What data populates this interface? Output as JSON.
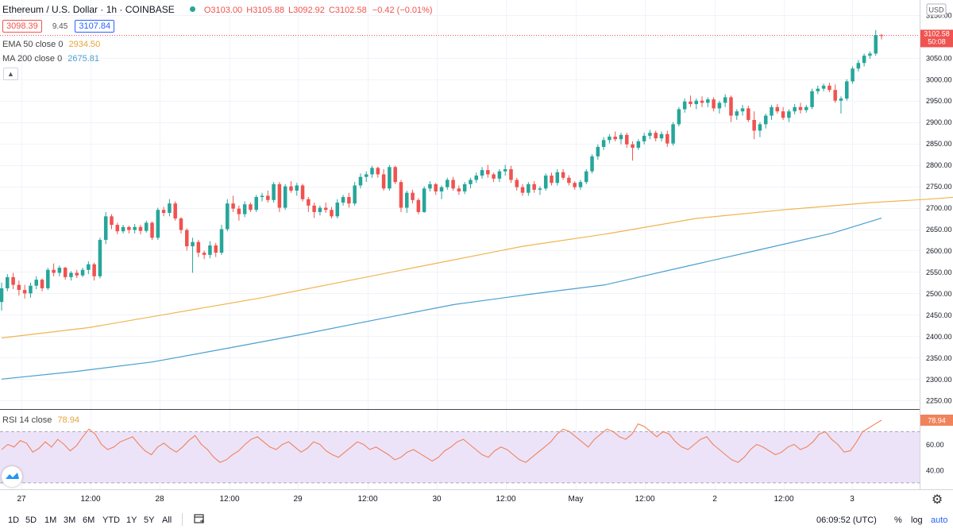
{
  "header": {
    "symbol": "Ethereum / U.S. Dollar · 1h · COINBASE",
    "open": "O3103.00",
    "high": "H3105.88",
    "low": "L3092.92",
    "close": "C3102.58",
    "change": "−0.42 (−0.01%)",
    "bid": "3098.39",
    "spread": "9.45",
    "ask": "3107.84"
  },
  "indicators": {
    "ema_label": "EMA 50 close 0",
    "ema_value": "2934.50",
    "ma_label": "MA 200 close 0",
    "ma_value": "2675.81",
    "rsi_label": "RSI 14 close",
    "rsi_value": "78.94"
  },
  "price_axis": {
    "currency": "USD",
    "ticks": [
      "3150.00",
      "3100.00",
      "3050.00",
      "3000.00",
      "2950.00",
      "2900.00",
      "2850.00",
      "2800.00",
      "2750.00",
      "2700.00",
      "2650.00",
      "2600.00",
      "2550.00",
      "2500.00",
      "2450.00",
      "2400.00",
      "2350.00",
      "2300.00",
      "2250.00"
    ],
    "last_price": "3102.58",
    "countdown": "50:08"
  },
  "rsi_axis": {
    "ticks": [
      "80.00",
      "60.00",
      "40.00"
    ]
  },
  "time_axis": [
    "27",
    "12:00",
    "28",
    "12:00",
    "29",
    "12:00",
    "30",
    "12:00",
    "May",
    "12:00",
    "2",
    "12:00",
    "3"
  ],
  "bottom_bar": {
    "timeframes": [
      "1D",
      "5D",
      "1M",
      "3M",
      "6M",
      "YTD",
      "1Y",
      "5Y",
      "All"
    ],
    "clock": "06:09:52 (UTC)",
    "percent": "%",
    "log": "log",
    "auto": "auto"
  },
  "colors": {
    "up": "#26a69a",
    "down": "#ef5350",
    "ema": "#f0b44e",
    "ma": "#4a9fd1",
    "rsi": "#f0835a",
    "rsi_band": "#ece3f9"
  },
  "chart_data": [
    {
      "type": "candlestick",
      "interval": "1h",
      "ylim": [
        2230,
        3185
      ],
      "grid": true,
      "candles_ohlc": [
        [
          2480,
          2525,
          2460,
          2512
        ],
        [
          2512,
          2545,
          2505,
          2538
        ],
        [
          2538,
          2548,
          2510,
          2520
        ],
        [
          2520,
          2530,
          2495,
          2508
        ],
        [
          2508,
          2520,
          2488,
          2500
        ],
        [
          2500,
          2525,
          2490,
          2518
        ],
        [
          2518,
          2540,
          2510,
          2532
        ],
        [
          2532,
          2535,
          2505,
          2512
        ],
        [
          2512,
          2560,
          2508,
          2555
        ],
        [
          2555,
          2570,
          2540,
          2548
        ],
        [
          2548,
          2565,
          2540,
          2560
        ],
        [
          2560,
          2562,
          2532,
          2538
        ],
        [
          2538,
          2552,
          2530,
          2548
        ],
        [
          2548,
          2555,
          2536,
          2542
        ],
        [
          2542,
          2560,
          2538,
          2555
        ],
        [
          2555,
          2575,
          2545,
          2568
        ],
        [
          2568,
          2572,
          2530,
          2540
        ],
        [
          2540,
          2630,
          2535,
          2625
        ],
        [
          2625,
          2690,
          2615,
          2680
        ],
        [
          2680,
          2685,
          2650,
          2660
        ],
        [
          2660,
          2665,
          2638,
          2645
        ],
        [
          2645,
          2660,
          2640,
          2655
        ],
        [
          2655,
          2658,
          2640,
          2648
        ],
        [
          2648,
          2662,
          2640,
          2655
        ],
        [
          2655,
          2660,
          2638,
          2646
        ],
        [
          2646,
          2670,
          2642,
          2665
        ],
        [
          2665,
          2668,
          2625,
          2630
        ],
        [
          2630,
          2700,
          2625,
          2695
        ],
        [
          2695,
          2702,
          2680,
          2688
        ],
        [
          2688,
          2720,
          2680,
          2710
        ],
        [
          2710,
          2715,
          2670,
          2675
        ],
        [
          2675,
          2678,
          2640,
          2648
        ],
        [
          2648,
          2652,
          2600,
          2610
        ],
        [
          2610,
          2630,
          2548,
          2620
        ],
        [
          2620,
          2625,
          2585,
          2595
        ],
        [
          2595,
          2600,
          2580,
          2590
        ],
        [
          2590,
          2622,
          2582,
          2612
        ],
        [
          2612,
          2618,
          2585,
          2595
        ],
        [
          2595,
          2660,
          2590,
          2650
        ],
        [
          2650,
          2720,
          2645,
          2710
        ],
        [
          2710,
          2728,
          2690,
          2698
        ],
        [
          2698,
          2705,
          2670,
          2685
        ],
        [
          2685,
          2715,
          2678,
          2708
        ],
        [
          2708,
          2712,
          2690,
          2695
        ],
        [
          2695,
          2730,
          2690,
          2725
        ],
        [
          2725,
          2735,
          2715,
          2728
        ],
        [
          2728,
          2740,
          2712,
          2718
        ],
        [
          2718,
          2760,
          2712,
          2755
        ],
        [
          2755,
          2760,
          2690,
          2700
        ],
        [
          2700,
          2755,
          2695,
          2750
        ],
        [
          2750,
          2762,
          2735,
          2740
        ],
        [
          2740,
          2758,
          2728,
          2752
        ],
        [
          2752,
          2756,
          2715,
          2720
        ],
        [
          2720,
          2725,
          2690,
          2705
        ],
        [
          2705,
          2712,
          2676,
          2690
        ],
        [
          2690,
          2705,
          2682,
          2700
        ],
        [
          2700,
          2712,
          2688,
          2695
        ],
        [
          2695,
          2702,
          2675,
          2680
        ],
        [
          2680,
          2720,
          2675,
          2712
        ],
        [
          2712,
          2730,
          2705,
          2725
        ],
        [
          2725,
          2735,
          2700,
          2710
        ],
        [
          2710,
          2760,
          2705,
          2752
        ],
        [
          2752,
          2780,
          2745,
          2772
        ],
        [
          2772,
          2785,
          2760,
          2778
        ],
        [
          2778,
          2798,
          2770,
          2793
        ],
        [
          2793,
          2796,
          2770,
          2778
        ],
        [
          2778,
          2790,
          2740,
          2745
        ],
        [
          2745,
          2800,
          2740,
          2795
        ],
        [
          2795,
          2798,
          2755,
          2760
        ],
        [
          2760,
          2765,
          2690,
          2700
        ],
        [
          2700,
          2740,
          2688,
          2735
        ],
        [
          2735,
          2742,
          2710,
          2718
        ],
        [
          2718,
          2722,
          2685,
          2690
        ],
        [
          2690,
          2750,
          2688,
          2745
        ],
        [
          2745,
          2762,
          2738,
          2755
        ],
        [
          2755,
          2758,
          2730,
          2738
        ],
        [
          2738,
          2752,
          2720,
          2748
        ],
        [
          2748,
          2770,
          2742,
          2765
        ],
        [
          2765,
          2772,
          2740,
          2745
        ],
        [
          2745,
          2752,
          2730,
          2738
        ],
        [
          2738,
          2760,
          2732,
          2755
        ],
        [
          2755,
          2770,
          2745,
          2765
        ],
        [
          2765,
          2782,
          2758,
          2775
        ],
        [
          2775,
          2795,
          2768,
          2788
        ],
        [
          2788,
          2800,
          2770,
          2778
        ],
        [
          2778,
          2782,
          2760,
          2768
        ],
        [
          2768,
          2790,
          2760,
          2785
        ],
        [
          2785,
          2800,
          2775,
          2790
        ],
        [
          2790,
          2798,
          2758,
          2765
        ],
        [
          2765,
          2770,
          2740,
          2748
        ],
        [
          2748,
          2755,
          2728,
          2735
        ],
        [
          2735,
          2760,
          2728,
          2755
        ],
        [
          2755,
          2762,
          2735,
          2742
        ],
        [
          2742,
          2750,
          2730,
          2745
        ],
        [
          2745,
          2780,
          2740,
          2775
        ],
        [
          2775,
          2782,
          2752,
          2758
        ],
        [
          2758,
          2790,
          2752,
          2783
        ],
        [
          2783,
          2790,
          2765,
          2770
        ],
        [
          2770,
          2776,
          2752,
          2758
        ],
        [
          2758,
          2762,
          2742,
          2748
        ],
        [
          2748,
          2765,
          2742,
          2760
        ],
        [
          2760,
          2790,
          2755,
          2785
        ],
        [
          2785,
          2825,
          2780,
          2820
        ],
        [
          2820,
          2848,
          2812,
          2842
        ],
        [
          2842,
          2865,
          2835,
          2858
        ],
        [
          2858,
          2872,
          2850,
          2866
        ],
        [
          2866,
          2878,
          2855,
          2860
        ],
        [
          2860,
          2875,
          2848,
          2870
        ],
        [
          2870,
          2875,
          2840,
          2848
        ],
        [
          2848,
          2855,
          2810,
          2840
        ],
        [
          2840,
          2860,
          2835,
          2855
        ],
        [
          2855,
          2875,
          2848,
          2868
        ],
        [
          2868,
          2882,
          2860,
          2875
        ],
        [
          2875,
          2880,
          2855,
          2862
        ],
        [
          2862,
          2878,
          2855,
          2872
        ],
        [
          2872,
          2880,
          2842,
          2850
        ],
        [
          2850,
          2900,
          2845,
          2895
        ],
        [
          2895,
          2935,
          2890,
          2930
        ],
        [
          2930,
          2955,
          2922,
          2948
        ],
        [
          2948,
          2962,
          2935,
          2942
        ],
        [
          2942,
          2955,
          2930,
          2950
        ],
        [
          2950,
          2960,
          2935,
          2945
        ],
        [
          2945,
          2958,
          2935,
          2953
        ],
        [
          2953,
          2958,
          2925,
          2932
        ],
        [
          2932,
          2950,
          2920,
          2945
        ],
        [
          2945,
          2965,
          2935,
          2958
        ],
        [
          2958,
          2962,
          2900,
          2915
        ],
        [
          2915,
          2930,
          2905,
          2925
        ],
        [
          2925,
          2940,
          2915,
          2932
        ],
        [
          2932,
          2938,
          2900,
          2905
        ],
        [
          2905,
          2925,
          2860,
          2880
        ],
        [
          2880,
          2900,
          2865,
          2895
        ],
        [
          2895,
          2920,
          2885,
          2915
        ],
        [
          2915,
          2940,
          2905,
          2935
        ],
        [
          2935,
          2942,
          2920,
          2925
        ],
        [
          2925,
          2935,
          2905,
          2910
        ],
        [
          2910,
          2930,
          2900,
          2925
        ],
        [
          2925,
          2942,
          2918,
          2935
        ],
        [
          2935,
          2945,
          2920,
          2928
        ],
        [
          2928,
          2940,
          2922,
          2935
        ],
        [
          2935,
          2978,
          2930,
          2972
        ],
        [
          2972,
          2985,
          2965,
          2978
        ],
        [
          2978,
          2990,
          2972,
          2985
        ],
        [
          2985,
          2992,
          2970,
          2975
        ],
        [
          2975,
          2988,
          2945,
          2950
        ],
        [
          2950,
          2960,
          2920,
          2955
        ],
        [
          2955,
          3000,
          2950,
          2995
        ],
        [
          2995,
          3030,
          2990,
          3025
        ],
        [
          3025,
          3045,
          3018,
          3038
        ],
        [
          3038,
          3060,
          3030,
          3055
        ],
        [
          3055,
          3065,
          3048,
          3060
        ],
        [
          3060,
          3115,
          3055,
          3103
        ],
        [
          3103,
          3106,
          3093,
          3102.58
        ]
      ],
      "ema50": [
        [
          0,
          2396
        ],
        [
          15,
          2420
        ],
        [
          30,
          2455
        ],
        [
          45,
          2490
        ],
        [
          60,
          2530
        ],
        [
          75,
          2570
        ],
        [
          90,
          2610
        ],
        [
          105,
          2640
        ],
        [
          120,
          2675
        ],
        [
          135,
          2695
        ],
        [
          150,
          2712
        ],
        [
          160,
          2720
        ],
        [
          170,
          2730
        ],
        [
          180,
          2740
        ],
        [
          195,
          2770
        ],
        [
          210,
          2805
        ],
        [
          225,
          2840
        ],
        [
          240,
          2858
        ],
        [
          252,
          2872
        ],
        [
          265,
          2890
        ],
        [
          276,
          2910
        ],
        [
          283,
          2934.5
        ]
      ],
      "ma200": [
        [
          0,
          2300
        ],
        [
          30,
          2318
        ],
        [
          60,
          2340
        ],
        [
          90,
          2372
        ],
        [
          120,
          2405
        ],
        [
          150,
          2440
        ],
        [
          180,
          2474
        ],
        [
          210,
          2498
        ],
        [
          240,
          2520
        ],
        [
          270,
          2560
        ],
        [
          300,
          2600
        ],
        [
          330,
          2640
        ],
        [
          350,
          2675.81
        ]
      ]
    },
    {
      "type": "line",
      "title": "RSI 14 close",
      "ylim": [
        25,
        87
      ],
      "bands": [
        30,
        70
      ],
      "rsi": [
        56,
        60,
        58,
        63,
        61,
        54,
        57,
        62,
        58,
        64,
        60,
        55,
        59,
        66,
        72,
        68,
        60,
        56,
        58,
        62,
        64,
        66,
        60,
        55,
        52,
        58,
        61,
        57,
        54,
        58,
        63,
        67,
        60,
        56,
        50,
        46,
        48,
        52,
        55,
        60,
        64,
        66,
        62,
        58,
        56,
        60,
        62,
        58,
        54,
        57,
        62,
        60,
        55,
        52,
        50,
        54,
        58,
        62,
        60,
        56,
        58,
        55,
        52,
        48,
        50,
        54,
        56,
        53,
        50,
        47,
        50,
        55,
        58,
        62,
        64,
        60,
        56,
        52,
        50,
        55,
        58,
        56,
        52,
        48,
        46,
        50,
        54,
        58,
        62,
        68,
        72,
        70,
        66,
        62,
        58,
        64,
        68,
        72,
        70,
        66,
        64,
        68,
        76,
        74,
        70,
        66,
        70,
        68,
        62,
        58,
        56,
        60,
        64,
        66,
        60,
        56,
        52,
        48,
        46,
        50,
        56,
        60,
        58,
        55,
        52,
        54,
        58,
        60,
        56,
        58,
        62,
        68,
        70,
        64,
        60,
        54,
        55,
        62,
        70,
        73,
        76,
        78.94
      ]
    }
  ]
}
